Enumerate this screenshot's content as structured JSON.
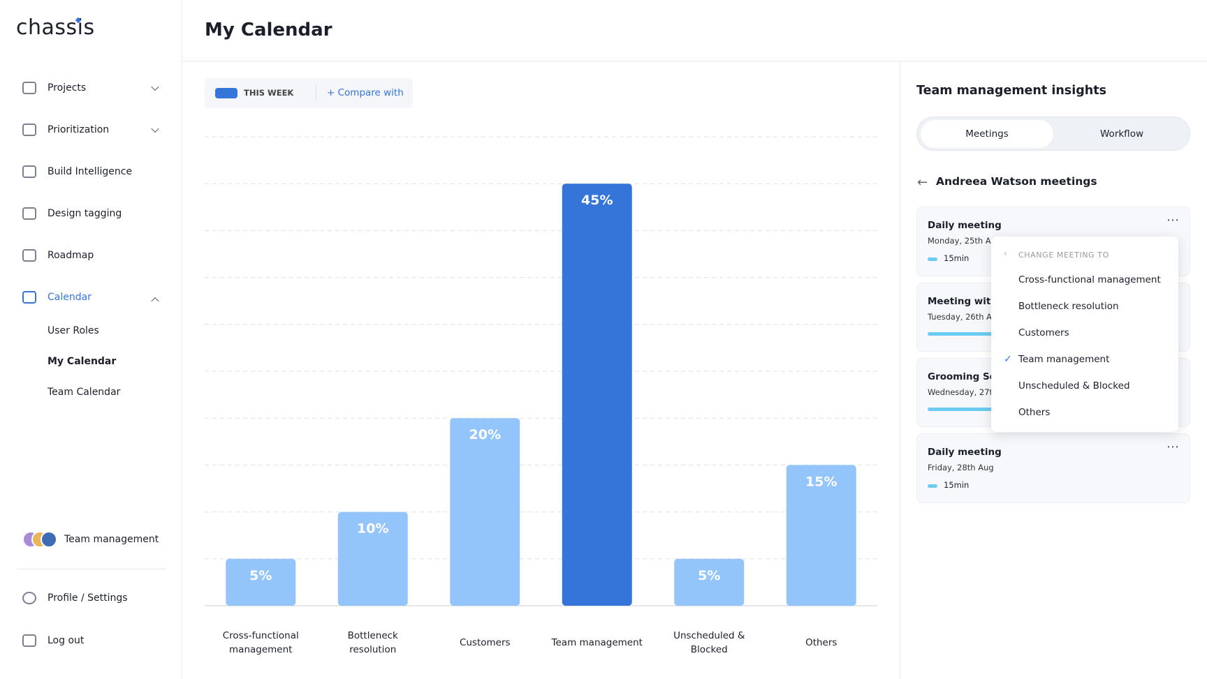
{
  "sidebar": {
    "logo": "chassis",
    "nav": [
      "Projects",
      "Prioritization",
      "Build Intelligence",
      "Design tagging",
      "Roadmap",
      "Calendar"
    ],
    "calendar_sub": [
      "User Roles",
      "My Calendar",
      "Team Calendar"
    ],
    "team": "Team management",
    "footer": [
      "Profile / Settings",
      "Log out"
    ]
  },
  "header": {
    "title": "My Calendar"
  },
  "toolbar": {
    "period": "THIS WEEK",
    "compare": "+ Compare with"
  },
  "chart_data": {
    "type": "bar",
    "categories": [
      "Cross-functional management",
      "Bottleneck resolution",
      "Customers",
      "Team management",
      "Unscheduled & Blocked",
      "Others"
    ],
    "values": [
      5,
      10,
      20,
      45,
      5,
      15
    ],
    "value_labels": [
      "5%",
      "10%",
      "20%",
      "45%",
      "5%",
      "15%"
    ],
    "colors": [
      "#93c5fb",
      "#93c5fb",
      "#93c5fb",
      "#3574d8",
      "#93c5fb",
      "#93c5fb"
    ],
    "ylim": [
      0,
      50
    ],
    "yticks": [
      0,
      5,
      10,
      15,
      20,
      25,
      30,
      35,
      40,
      45,
      50
    ],
    "grid": true
  },
  "insights": {
    "title": "Team management insights",
    "tabs": [
      "Meetings",
      "Workflow"
    ],
    "back_title": "Andreea Watson meetings",
    "meetings": [
      {
        "title": "Daily meeting",
        "date": "Monday, 25th A",
        "duration": "15min"
      },
      {
        "title": "Meeting with",
        "date": "Tuesday, 26th A"
      },
      {
        "title": "Grooming Ses",
        "date": "Wednesday, 27t"
      },
      {
        "title": "Daily meeting",
        "date": "Friday, 28th Aug",
        "duration": "15min"
      }
    ],
    "menu": {
      "heading": "CHANGE MEETING TO",
      "options": [
        "Cross-functional management",
        "Bottleneck resolution",
        "Customers",
        "Team management",
        "Unscheduled & Blocked",
        "Others"
      ]
    }
  }
}
